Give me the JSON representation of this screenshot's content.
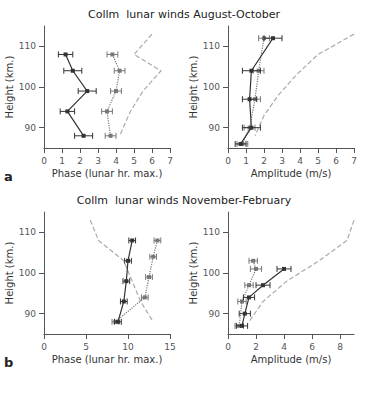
{
  "chart_data": [
    {
      "type": "line",
      "title": "Collm  lunar winds August-October",
      "annotations": [
        "a"
      ],
      "xlabel": "Phase (lunar hr. max.)",
      "ylabel": "Height (km.)",
      "xlim": [
        0,
        7
      ],
      "xticks": [
        0,
        1,
        2,
        3,
        4,
        5,
        6,
        7
      ],
      "ylim": [
        85,
        115
      ],
      "yticks": [
        90,
        100,
        110
      ],
      "grid": false,
      "series": [
        {
          "color": "#333333",
          "line_style": "solid",
          "marker": "square",
          "x": [
            1.2,
            1.6,
            2.4,
            1.3,
            2.2
          ],
          "y": [
            108,
            104,
            99,
            94,
            88
          ],
          "xerr": [
            0.4,
            0.5,
            0.5,
            0.4,
            0.5
          ]
        },
        {
          "color": "#777777",
          "line_style": "dotted",
          "marker": "square",
          "x": [
            3.8,
            4.2,
            4.0,
            3.5,
            3.7
          ],
          "y": [
            108,
            104,
            99,
            94,
            88
          ],
          "xerr": [
            0.3,
            0.3,
            0.3,
            0.3,
            0.3
          ]
        },
        {
          "color": "#aaaaaa",
          "line_style": "dashed",
          "x": [
            6.0,
            5.0,
            6.5,
            5.5,
            4.8,
            4.2
          ],
          "y": [
            113,
            108,
            104,
            99,
            94,
            88
          ]
        }
      ]
    },
    {
      "type": "line",
      "xlabel": "Amplitude (m/s)",
      "ylabel": "Height (km.)",
      "xlim": [
        0,
        7
      ],
      "xticks": [
        0,
        1,
        2,
        3,
        4,
        5,
        6,
        7
      ],
      "ylim": [
        85,
        115
      ],
      "yticks": [
        90,
        100,
        110
      ],
      "grid": false,
      "series": [
        {
          "color": "#333333",
          "line_style": "solid",
          "marker": "square",
          "x": [
            2.5,
            1.3,
            1.2,
            1.3,
            0.7
          ],
          "y": [
            112,
            104,
            97,
            90,
            86
          ],
          "xerr": [
            0.5,
            0.5,
            0.4,
            0.5,
            0.3
          ]
        },
        {
          "color": "#777777",
          "line_style": "dotted",
          "marker": "square",
          "x": [
            2.0,
            1.7,
            1.5,
            1.2,
            0.8
          ],
          "y": [
            112,
            104,
            97,
            90,
            86
          ],
          "xerr": [
            0.3,
            0.3,
            0.3,
            0.3,
            0.3
          ]
        },
        {
          "color": "#aaaaaa",
          "line_style": "dashed",
          "x": [
            7.0,
            5.0,
            3.8,
            2.8,
            2.0,
            1.5
          ],
          "y": [
            113,
            108,
            103,
            98,
            93,
            88
          ]
        }
      ]
    },
    {
      "type": "line",
      "title": "Collm  lunar winds November-February",
      "annotations": [
        "b"
      ],
      "xlabel": "Phase (lunar hr. max.)",
      "ylabel": "Height (km.)",
      "xlim": [
        0,
        15
      ],
      "xticks": [
        0,
        5,
        10,
        15
      ],
      "ylim": [
        85,
        115
      ],
      "yticks": [
        90,
        100,
        110
      ],
      "grid": false,
      "series": [
        {
          "color": "#333333",
          "line_style": "solid",
          "marker": "square",
          "x": [
            10.5,
            10.0,
            9.8,
            9.5,
            8.8
          ],
          "y": [
            108,
            103,
            98,
            93,
            88
          ],
          "xerr": [
            0.4,
            0.4,
            0.4,
            0.4,
            0.4
          ]
        },
        {
          "color": "#777777",
          "line_style": "dotted",
          "marker": "square",
          "x": [
            13.5,
            13.0,
            12.5,
            12.0,
            8.5
          ],
          "y": [
            108,
            104,
            99,
            94,
            88
          ],
          "xerr": [
            0.4,
            0.4,
            0.4,
            0.4,
            0.4
          ]
        },
        {
          "color": "#aaaaaa",
          "line_style": "dashed",
          "x": [
            5.5,
            6.5,
            9.5,
            10.5,
            11.5,
            13.0
          ],
          "y": [
            113,
            108,
            103,
            98,
            93,
            88
          ]
        }
      ]
    },
    {
      "type": "line",
      "xlabel": "Amplitude (m/s)",
      "ylabel": "Height (km.)",
      "xlim": [
        0,
        9
      ],
      "xticks": [
        0,
        2,
        4,
        6,
        8
      ],
      "ylim": [
        85,
        115
      ],
      "yticks": [
        90,
        100,
        110
      ],
      "grid": false,
      "series": [
        {
          "color": "#333333",
          "line_style": "solid",
          "marker": "square",
          "x": [
            4.0,
            2.5,
            1.5,
            1.2,
            1.0
          ],
          "y": [
            101,
            97,
            94,
            90,
            87
          ],
          "xerr": [
            0.5,
            0.5,
            0.4,
            0.4,
            0.4
          ]
        },
        {
          "color": "#777777",
          "line_style": "dotted",
          "marker": "square",
          "x": [
            1.8,
            2.0,
            1.5,
            1.0,
            0.8
          ],
          "y": [
            103,
            101,
            97,
            93,
            87
          ],
          "xerr": [
            0.3,
            0.4,
            0.3,
            0.3,
            0.3
          ]
        },
        {
          "color": "#aaaaaa",
          "line_style": "dashed",
          "x": [
            9.0,
            8.5,
            6.5,
            4.2,
            2.5,
            1.5
          ],
          "y": [
            113,
            108,
            103,
            98,
            93,
            88
          ]
        }
      ]
    }
  ]
}
